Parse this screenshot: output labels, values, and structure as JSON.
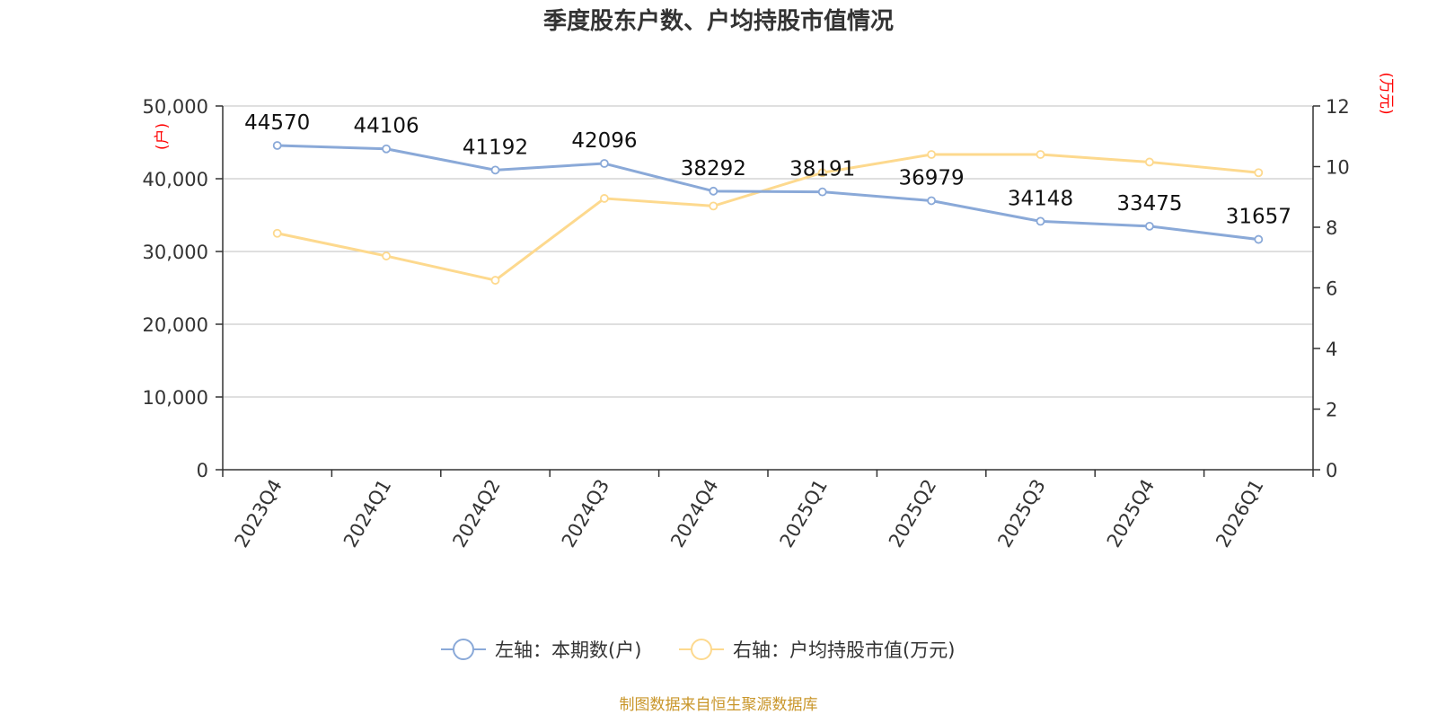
{
  "title": "季度股东户数、户均持股市值情况",
  "source": "制图数据来自恒生聚源数据库",
  "colors": {
    "left_series": "#8aa9d8",
    "right_series": "#fdd98e",
    "unit_label": "#ff0000",
    "source": "#c9962a",
    "grid": "#cccccc",
    "axis": "#333333"
  },
  "chart_data": {
    "type": "line",
    "title": "季度股东户数、户均持股市值情况",
    "categories": [
      "2023Q4",
      "2024Q1",
      "2024Q2",
      "2024Q3",
      "2024Q4",
      "2025Q1",
      "2025Q2",
      "2025Q3",
      "2025Q4",
      "2026Q1"
    ],
    "left_axis": {
      "unit": "(户)",
      "ylim": [
        0,
        50000
      ],
      "ticks": [
        "0",
        "10,000",
        "20,000",
        "30,000",
        "40,000",
        "50,000"
      ]
    },
    "right_axis": {
      "unit": "(万元)",
      "ylim": [
        0,
        12
      ],
      "ticks": [
        "0",
        "2",
        "4",
        "6",
        "8",
        "10",
        "12"
      ]
    },
    "series": [
      {
        "name": "左轴：本期数(户)",
        "axis": "left",
        "values": [
          44570,
          44106,
          41192,
          42096,
          38292,
          38191,
          36979,
          34148,
          33475,
          31657
        ],
        "data_labels": [
          "44570",
          "44106",
          "41192",
          "42096",
          "38292",
          "38191",
          "36979",
          "34148",
          "33475",
          "31657"
        ]
      },
      {
        "name": "右轴：户均持股市值(万元)",
        "axis": "right",
        "values": [
          7.8,
          7.05,
          6.25,
          8.95,
          8.7,
          9.8,
          10.4,
          10.4,
          10.15,
          9.8
        ]
      }
    ],
    "grid": true,
    "legend_position": "bottom-center"
  }
}
